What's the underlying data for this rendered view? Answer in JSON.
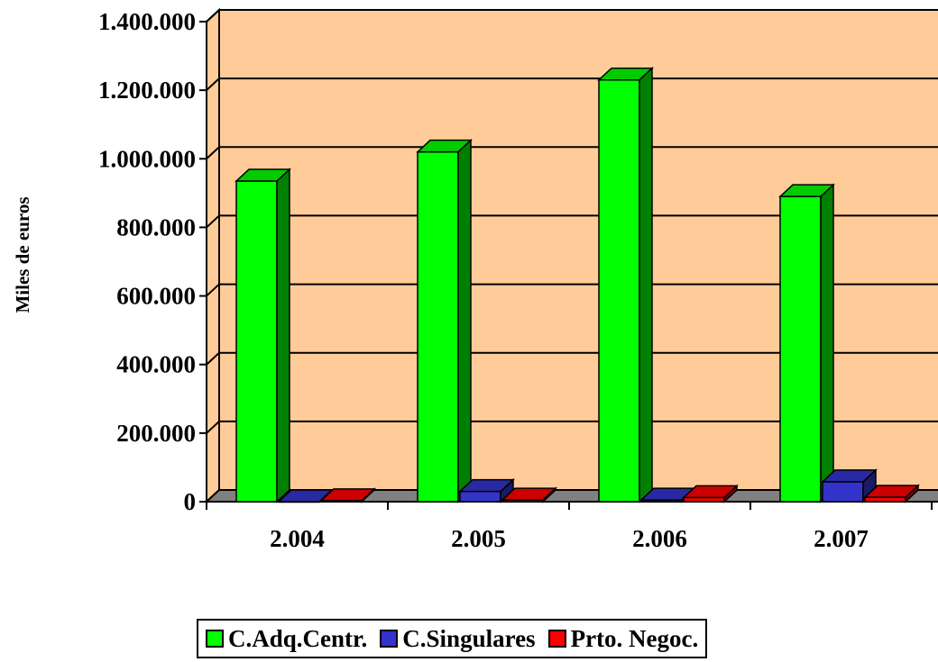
{
  "chart_data": {
    "type": "bar",
    "title": "",
    "xlabel": "",
    "ylabel": "Miles de euros",
    "categories": [
      "2.004",
      "2.005",
      "2.006",
      "2.007"
    ],
    "yticks": [
      "0",
      "200.000",
      "400.000",
      "600.000",
      "800.000",
      "1.000.000",
      "1.200.000",
      "1.400.000"
    ],
    "ylim": [
      0,
      1400000
    ],
    "grid": true,
    "three_d": true,
    "legend_position": "bottom",
    "series": [
      {
        "name": "C.Adq.Centr.",
        "color": "#00ff00",
        "values": [
          935000,
          1020000,
          1230000,
          890000
        ]
      },
      {
        "name": "C.Singulares",
        "color": "#3333cc",
        "values": [
          0,
          30000,
          5000,
          58000
        ]
      },
      {
        "name": "Prto. Negoc.",
        "color": "#ff0000",
        "values": [
          3000,
          5000,
          12000,
          13000
        ]
      }
    ],
    "colors": {
      "plot_background": "#ffcc99",
      "floor": "#808080"
    }
  }
}
